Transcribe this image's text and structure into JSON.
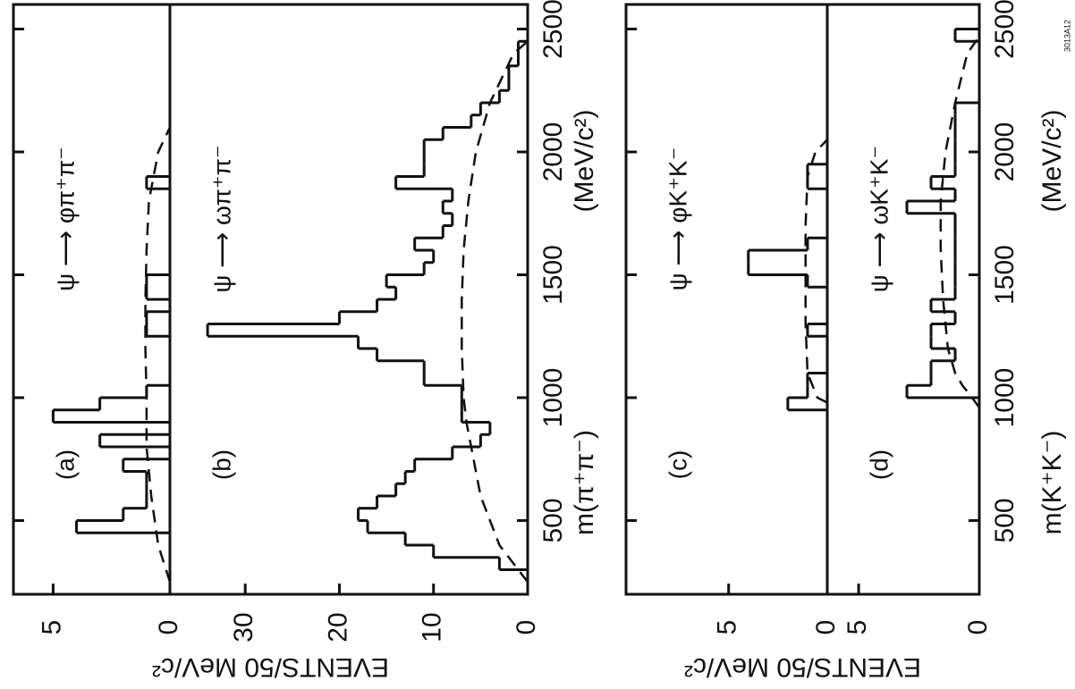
{
  "chart_data": [
    {
      "type": "histogram",
      "x_label": "m(π⁺π⁻)",
      "x_unit": "(MeV/c²)",
      "y_label": "EVENTS/50 MeV/c²",
      "xlim": [
        200,
        2600
      ],
      "xticks": [
        500,
        1000,
        1500,
        2000,
        2500
      ],
      "panels": [
        {
          "label": "(a)",
          "title": "ψ ⟶ φπ⁺π⁻",
          "ylim": [
            0,
            6.7
          ],
          "yticks": [
            0,
            5
          ],
          "bins": [
            300,
            350,
            400,
            450,
            500,
            550,
            600,
            650,
            700,
            750,
            800,
            850,
            900,
            950,
            1000,
            1050,
            1100,
            1150,
            1200,
            1250,
            1300,
            1350,
            1400,
            1450,
            1500,
            1550,
            1600,
            1650,
            1700,
            1750,
            1800,
            1850,
            1900,
            1950,
            2000,
            2050,
            2100,
            2150,
            2200,
            2250,
            2300,
            2350,
            2400,
            2450,
            2500
          ],
          "values": [
            0,
            0,
            0,
            4,
            2,
            1,
            1,
            1,
            2,
            0,
            3,
            0,
            5,
            3,
            1,
            0,
            0,
            0,
            0,
            1,
            1,
            0,
            1,
            1,
            0,
            0,
            0,
            0,
            0,
            0,
            0,
            1,
            0,
            0,
            0,
            0,
            0,
            0,
            0,
            0,
            0,
            0,
            0,
            0
          ],
          "curve": {
            "x": [
              250,
              400,
              600,
              800,
              1000,
              1200,
              1400,
              1600,
              1800,
              2000,
              2100
            ],
            "y": [
              0,
              0.5,
              0.8,
              1,
              1,
              1.05,
              1.05,
              1,
              0.9,
              0.5,
              0
            ]
          }
        },
        {
          "label": "(b)",
          "title": "ψ ⟶ ωπ⁺π⁻",
          "ylim": [
            0,
            38
          ],
          "yticks": [
            0,
            10,
            20,
            30
          ],
          "bins": [
            300,
            350,
            400,
            450,
            500,
            550,
            600,
            650,
            700,
            750,
            800,
            850,
            900,
            950,
            1000,
            1050,
            1100,
            1150,
            1200,
            1250,
            1300,
            1350,
            1400,
            1450,
            1500,
            1550,
            1600,
            1650,
            1700,
            1750,
            1800,
            1850,
            1900,
            1950,
            2000,
            2050,
            2100,
            2150,
            2200,
            2250,
            2300,
            2350,
            2400,
            2450,
            2500
          ],
          "values": [
            3,
            10,
            13,
            17,
            18,
            16,
            14,
            13,
            12,
            8,
            5,
            4,
            7,
            7,
            7,
            11,
            11,
            16,
            18,
            34,
            20,
            16,
            14,
            15,
            11,
            10,
            12,
            9,
            8,
            9,
            8,
            14,
            11,
            11,
            11,
            9,
            6,
            5,
            3,
            2,
            2,
            1,
            1,
            0
          ],
          "curve": {
            "x": [
              250,
              300,
              400,
              500,
              600,
              700,
              800,
              900,
              1000,
              1200,
              1400,
              1600,
              1800,
              2000,
              2200,
              2400,
              2450
            ],
            "y": [
              0,
              1,
              3,
              4,
              5,
              5.5,
              6,
              6.5,
              6.8,
              7,
              7,
              6.8,
              6.3,
              5.5,
              4,
              1.5,
              0
            ]
          }
        }
      ]
    },
    {
      "type": "histogram",
      "x_label": "m(K⁺K⁻)",
      "x_unit": "(MeV/c²)",
      "y_label": "EVENTS/50 MeV/c²",
      "code": "3013A12",
      "xlim": [
        200,
        2600
      ],
      "xticks": [
        500,
        1000,
        1500,
        2000,
        2500
      ],
      "panels": [
        {
          "label": "(c)",
          "title": "ψ ⟶ φK⁺K⁻",
          "ylim": [
            0,
            10.2
          ],
          "yticks": [
            0,
            5
          ],
          "bins": [
            950,
            1000,
            1050,
            1100,
            1150,
            1200,
            1250,
            1300,
            1350,
            1400,
            1450,
            1500,
            1550,
            1600,
            1650,
            1700,
            1750,
            1800,
            1850,
            1900,
            1950,
            2000,
            2050,
            2100,
            2150,
            2200,
            2250,
            2300,
            2350,
            2400,
            2450,
            2500
          ],
          "values": [
            2,
            1,
            1,
            0,
            0,
            0,
            1,
            0,
            0,
            0,
            1,
            4,
            4,
            1,
            0,
            0,
            0,
            0,
            1,
            1,
            0,
            0,
            0,
            0,
            0,
            0,
            0,
            0,
            0,
            0,
            0
          ],
          "curve": {
            "x": [
              980,
              1000,
              1100,
              1300,
              1500,
              1700,
              1900,
              2000,
              2050
            ],
            "y": [
              0,
              0.5,
              1,
              1.1,
              1.1,
              1.1,
              1,
              0.6,
              0
            ]
          }
        },
        {
          "label": "(d)",
          "title": "ψ ⟶ ωK⁺K⁻",
          "ylim": [
            0,
            6.3
          ],
          "yticks": [
            0,
            5
          ],
          "bins": [
            950,
            1000,
            1050,
            1100,
            1150,
            1200,
            1250,
            1300,
            1350,
            1400,
            1450,
            1500,
            1550,
            1600,
            1650,
            1700,
            1750,
            1800,
            1850,
            1900,
            1950,
            2000,
            2050,
            2100,
            2150,
            2200,
            2250,
            2300,
            2350,
            2400,
            2450,
            2500
          ],
          "values": [
            0,
            3,
            2,
            2,
            1,
            2,
            2,
            1,
            2,
            1,
            1,
            1,
            1,
            1,
            1,
            1,
            3,
            1,
            2,
            1,
            1,
            1,
            1,
            1,
            1,
            0,
            0,
            0,
            0,
            0,
            1
          ],
          "curve": {
            "x": [
              960,
              1000,
              1050,
              1100,
              1200,
              1400,
              1600,
              1800,
              2000,
              2200,
              2400,
              2470
            ],
            "y": [
              0,
              0.3,
              0.7,
              1,
              1.3,
              1.5,
              1.6,
              1.6,
              1.4,
              1.0,
              0.5,
              0
            ]
          }
        }
      ]
    }
  ]
}
